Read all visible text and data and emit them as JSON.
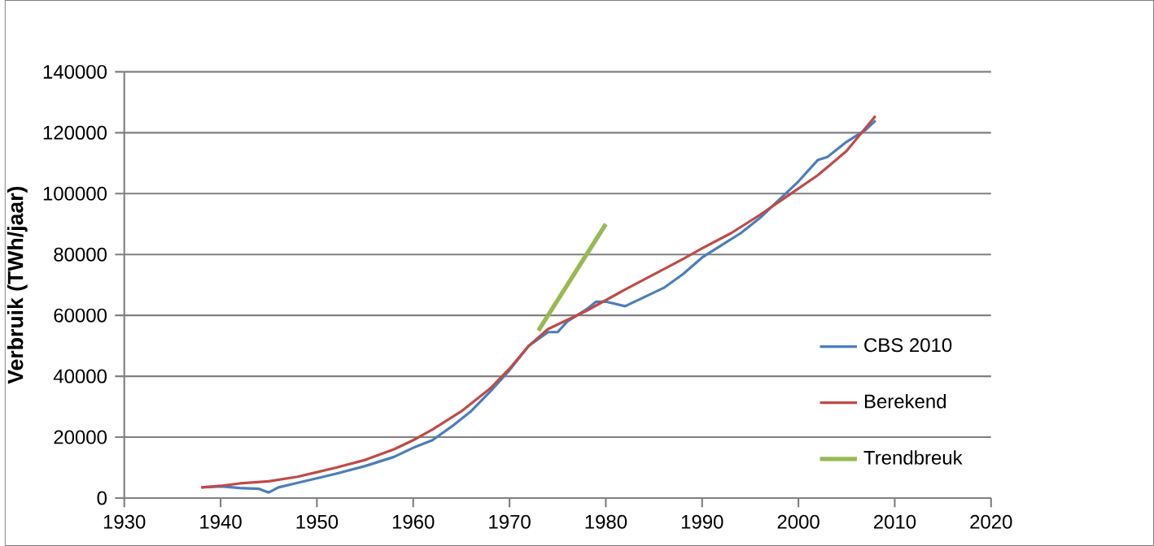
{
  "chart_data": {
    "type": "line",
    "ylabel": "Verbruik (TWh/jaar)",
    "xlim": [
      1930,
      2020
    ],
    "xticks": [
      1930,
      1940,
      1950,
      1960,
      1970,
      1980,
      1990,
      2000,
      2010,
      2020
    ],
    "ylim": [
      0,
      140000
    ],
    "yticks": [
      0,
      20000,
      40000,
      60000,
      80000,
      100000,
      120000,
      140000
    ],
    "grid": "y",
    "legend": "right",
    "marker": "none",
    "line_style": "solid",
    "series": [
      {
        "name": "CBS 2010",
        "color": "#4a7ebb",
        "x": [
          1938,
          1940,
          1942,
          1944,
          1945,
          1946,
          1948,
          1950,
          1952,
          1955,
          1958,
          1960,
          1962,
          1964,
          1966,
          1968,
          1970,
          1972,
          1974,
          1975,
          1976,
          1978,
          1979,
          1980,
          1982,
          1984,
          1986,
          1988,
          1990,
          1992,
          1994,
          1996,
          1998,
          2000,
          2002,
          2003,
          2005,
          2007,
          2008
        ],
        "values": [
          3500,
          3800,
          3300,
          3000,
          1800,
          3500,
          5000,
          6500,
          8000,
          10500,
          13500,
          16500,
          19000,
          23500,
          28500,
          35000,
          42000,
          50000,
          54500,
          54500,
          58000,
          62000,
          64500,
          64500,
          63000,
          66000,
          69000,
          73500,
          79000,
          83000,
          87000,
          92000,
          98000,
          104000,
          111000,
          112000,
          117000,
          121000,
          124000
        ]
      },
      {
        "name": "Berekend",
        "color": "#be4b48",
        "x": [
          1938,
          1940,
          1942,
          1945,
          1948,
          1950,
          1952,
          1955,
          1958,
          1960,
          1962,
          1965,
          1968,
          1970,
          1972,
          1974,
          1976,
          1978,
          1980,
          1982,
          1985,
          1988,
          1990,
          1993,
          1996,
          1999,
          2002,
          2005,
          2008
        ],
        "values": [
          3500,
          4000,
          4800,
          5500,
          7000,
          8500,
          10000,
          12500,
          16000,
          19000,
          22500,
          28500,
          36000,
          42500,
          50000,
          55500,
          58500,
          61500,
          65000,
          68500,
          73500,
          78500,
          82000,
          87000,
          93000,
          99500,
          106000,
          114000,
          125500
        ]
      },
      {
        "name": "Trendbreuk",
        "color": "#98b954",
        "x": [
          1973,
          1980
        ],
        "values": [
          55000,
          90000
        ]
      }
    ]
  }
}
